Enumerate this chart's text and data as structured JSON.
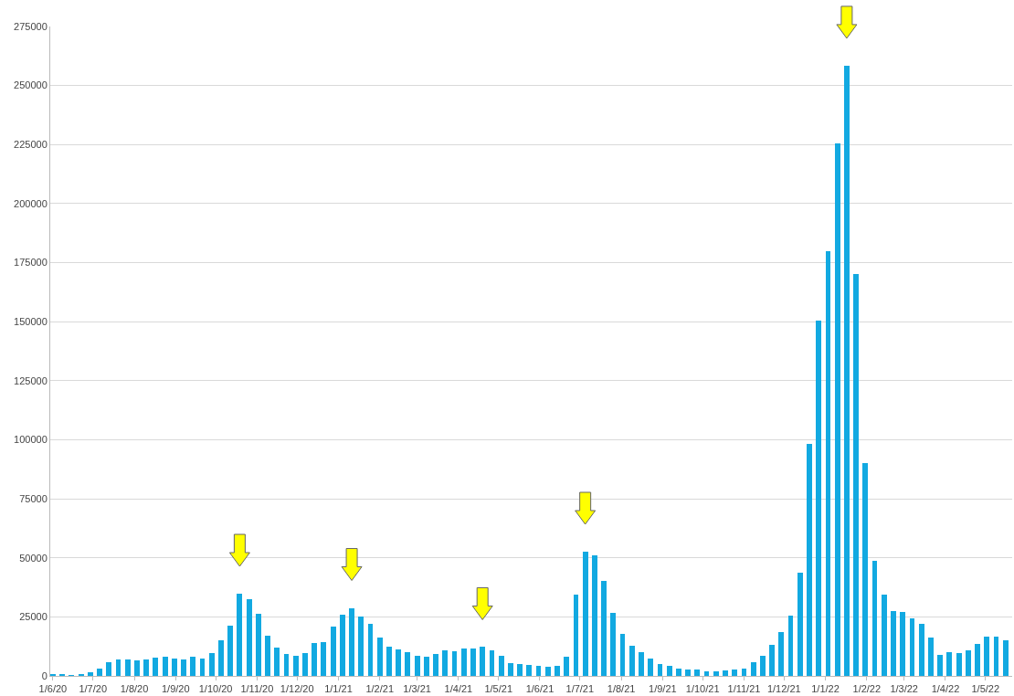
{
  "chart_data": {
    "type": "bar",
    "x": [
      "2020-06-01",
      "2020-06-08",
      "2020-06-15",
      "2020-06-22",
      "2020-06-29",
      "2020-07-06",
      "2020-07-13",
      "2020-07-20",
      "2020-07-27",
      "2020-08-03",
      "2020-08-10",
      "2020-08-17",
      "2020-08-24",
      "2020-08-31",
      "2020-09-07",
      "2020-09-14",
      "2020-09-21",
      "2020-09-28",
      "2020-10-05",
      "2020-10-12",
      "2020-10-19",
      "2020-10-26",
      "2020-11-02",
      "2020-11-09",
      "2020-11-16",
      "2020-11-23",
      "2020-11-30",
      "2020-12-07",
      "2020-12-14",
      "2020-12-21",
      "2020-12-28",
      "2021-01-04",
      "2021-01-11",
      "2021-01-18",
      "2021-01-25",
      "2021-02-01",
      "2021-02-08",
      "2021-02-15",
      "2021-02-22",
      "2021-03-01",
      "2021-03-08",
      "2021-03-15",
      "2021-03-22",
      "2021-03-29",
      "2021-04-05",
      "2021-04-12",
      "2021-04-19",
      "2021-04-26",
      "2021-05-03",
      "2021-05-10",
      "2021-05-17",
      "2021-05-24",
      "2021-05-31",
      "2021-06-07",
      "2021-06-14",
      "2021-06-21",
      "2021-06-28",
      "2021-07-05",
      "2021-07-12",
      "2021-07-19",
      "2021-07-26",
      "2021-08-02",
      "2021-08-09",
      "2021-08-16",
      "2021-08-23",
      "2021-08-30",
      "2021-09-06",
      "2021-09-13",
      "2021-09-20",
      "2021-09-27",
      "2021-10-04",
      "2021-10-11",
      "2021-10-18",
      "2021-10-25",
      "2021-11-01",
      "2021-11-08",
      "2021-11-15",
      "2021-11-22",
      "2021-11-29",
      "2021-12-06",
      "2021-12-13",
      "2021-12-20",
      "2021-12-27",
      "2022-01-03",
      "2022-01-10",
      "2022-01-17",
      "2022-01-24",
      "2022-01-31",
      "2022-02-07",
      "2022-02-14",
      "2022-02-21",
      "2022-02-28",
      "2022-03-07",
      "2022-03-14",
      "2022-03-21",
      "2022-03-28",
      "2022-04-04",
      "2022-04-11",
      "2022-04-18",
      "2022-04-25",
      "2022-05-02",
      "2022-05-09",
      "2022-05-16"
    ],
    "values": [
      800,
      800,
      500,
      800,
      1400,
      3100,
      5800,
      7100,
      7100,
      6600,
      7000,
      7900,
      8300,
      7500,
      7000,
      8300,
      7500,
      9700,
      15000,
      21100,
      34800,
      32500,
      26400,
      17200,
      11900,
      9200,
      8400,
      9800,
      14100,
      14500,
      20700,
      26000,
      28800,
      25300,
      21900,
      16100,
      12200,
      11100,
      10000,
      8700,
      8200,
      9100,
      10800,
      10400,
      11700,
      11700,
      12200,
      10800,
      8500,
      5600,
      5200,
      4700,
      4100,
      3800,
      4100,
      8200,
      34600,
      52600,
      51200,
      40200,
      26600,
      17700,
      12600,
      10000,
      7300,
      5100,
      4100,
      3200,
      2800,
      2800,
      1900,
      1900,
      2300,
      2700,
      3200,
      5800,
      8500,
      13000,
      18600,
      25500,
      43700,
      98100,
      150500,
      179900,
      225400,
      258400,
      170200,
      90200,
      48800,
      34500,
      27300,
      26900,
      24200,
      22000,
      16100,
      8900,
      10200,
      9800,
      11000,
      13700,
      16800,
      16800,
      15000
    ],
    "color": "#12a9e1",
    "xlim": [
      "2020-05-30",
      "2022-05-21"
    ],
    "xticks": [
      {
        "value": "2020-06-01",
        "label": "1/6/20"
      },
      {
        "value": "2020-07-01",
        "label": "1/7/20"
      },
      {
        "value": "2020-08-01",
        "label": "1/8/20"
      },
      {
        "value": "2020-09-01",
        "label": "1/9/20"
      },
      {
        "value": "2020-10-01",
        "label": "1/10/20"
      },
      {
        "value": "2020-11-01",
        "label": "1/11/20"
      },
      {
        "value": "2020-12-01",
        "label": "1/12/20"
      },
      {
        "value": "2021-01-01",
        "label": "1/1/21"
      },
      {
        "value": "2021-02-01",
        "label": "1/2/21"
      },
      {
        "value": "2021-03-01",
        "label": "1/3/21"
      },
      {
        "value": "2021-04-01",
        "label": "1/4/21"
      },
      {
        "value": "2021-05-01",
        "label": "1/5/21"
      },
      {
        "value": "2021-06-01",
        "label": "1/6/21"
      },
      {
        "value": "2021-07-01",
        "label": "1/7/21"
      },
      {
        "value": "2021-08-01",
        "label": "1/8/21"
      },
      {
        "value": "2021-09-01",
        "label": "1/9/21"
      },
      {
        "value": "2021-10-01",
        "label": "1/10/21"
      },
      {
        "value": "2021-11-01",
        "label": "1/11/21"
      },
      {
        "value": "2021-12-01",
        "label": "1/12/21"
      },
      {
        "value": "2022-01-01",
        "label": "1/1/22"
      },
      {
        "value": "2022-02-01",
        "label": "1/2/22"
      },
      {
        "value": "2022-03-01",
        "label": "1/3/22"
      },
      {
        "value": "2022-04-01",
        "label": "1/4/22"
      },
      {
        "value": "2022-05-01",
        "label": "1/5/22"
      }
    ],
    "ylim": [
      0,
      275000
    ],
    "yticks": [
      0,
      25000,
      50000,
      75000,
      100000,
      125000,
      150000,
      175000,
      200000,
      225000,
      250000,
      275000
    ],
    "grid": "y"
  }
}
